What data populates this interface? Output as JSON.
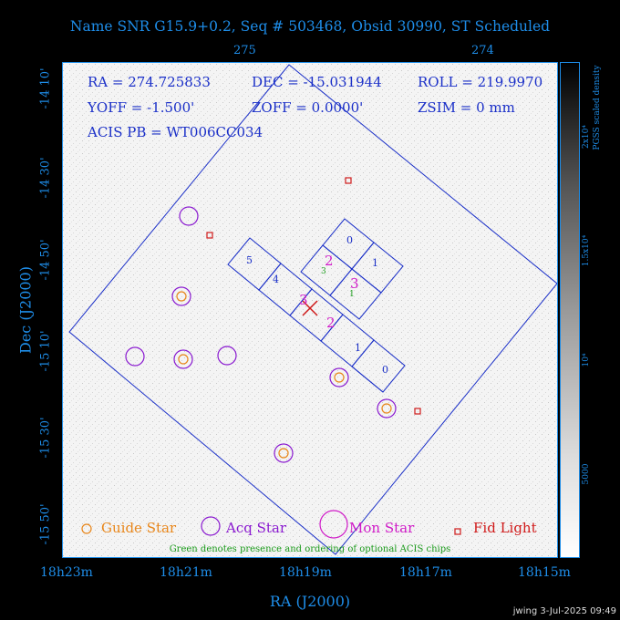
{
  "title": "Name SNR G15.9+0.2, Seq # 503468, Obsid 30990, ST Scheduled",
  "top_ticks": [
    "275",
    "274"
  ],
  "bottom_ticks": [
    "18h23m",
    "18h21m",
    "18h19m",
    "18h17m",
    "18h15m"
  ],
  "left_ticks": [
    "-14 10'",
    "-14 30'",
    "-14 50'",
    "-15 10'",
    "-15 30'",
    "-15 50'"
  ],
  "xlabel": "RA (J2000)",
  "ylabel": "Dec (J2000)",
  "info": {
    "ra": "RA = 274.725833",
    "dec": "DEC = -15.031944",
    "roll": "ROLL = 219.9970",
    "yoff": "YOFF =  -1.500'",
    "zoff": "ZOFF =  0.0000'",
    "zsim": "ZSIM = 0 mm",
    "acis": "ACIS PB = WT006CC034"
  },
  "chips": {
    "s0": "0",
    "s1": "1",
    "s2": "2",
    "s3": "3",
    "s4": "4",
    "s5": "5",
    "i0": "0",
    "i1": "1",
    "i2": "2",
    "i3": "3",
    "opt_i1": "1",
    "opt_i3": "3"
  },
  "legend": {
    "guide": "Guide Star",
    "acq": "Acq Star",
    "mon": "Mon Star",
    "fid": "Fid Light",
    "note": "Green denotes presence and ordering of optional ACIS chips"
  },
  "colorbar": {
    "title": "PGSS scaled density",
    "labels": [
      "2x10⁴",
      "1.5x10⁴",
      "10⁴",
      "5000"
    ]
  },
  "stamp": "jwing   3-Jul-2025 09:49",
  "colors": {
    "axis": "#1e8de8",
    "footprint": "#1a2fc8",
    "guide": "#e8861a",
    "acq": "#8a1ad0",
    "mon": "#d01ac8",
    "fid": "#d01a1a",
    "optional": "#1a9a1a"
  }
}
